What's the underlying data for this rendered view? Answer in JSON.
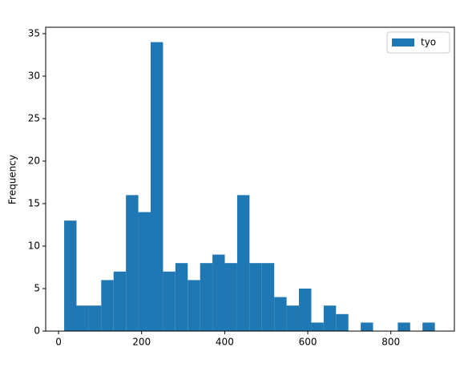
{
  "chart_data": {
    "type": "histogram",
    "ylabel": "Frequency",
    "bins": [
      13.5,
      43.25,
      73,
      102.75,
      132.5,
      162.25,
      192,
      221.75,
      251.5,
      281.25,
      311,
      340.75,
      370.5,
      400.25,
      430,
      459.75,
      489.5,
      519.25,
      549,
      578.75,
      608.5,
      638.25,
      668,
      697.75,
      727.5,
      757.25,
      787,
      816.75,
      846.5,
      876.25,
      906
    ],
    "series": [
      {
        "name": "tyo",
        "color": "#1f77b4",
        "values": [
          13,
          3,
          3,
          6,
          7,
          16,
          14,
          34,
          7,
          8,
          6,
          8,
          9,
          8,
          16,
          8,
          8,
          4,
          3,
          5,
          1,
          3,
          2,
          0,
          1,
          0,
          0,
          1,
          0,
          1
        ]
      }
    ],
    "xlim": [
      -31,
      953
    ],
    "ylim": [
      0,
      35.75
    ],
    "xticks": [
      0,
      200,
      400,
      600,
      800
    ],
    "yticks": [
      0,
      5,
      10,
      15,
      20,
      25,
      30,
      35
    ],
    "legend": "upper right"
  }
}
